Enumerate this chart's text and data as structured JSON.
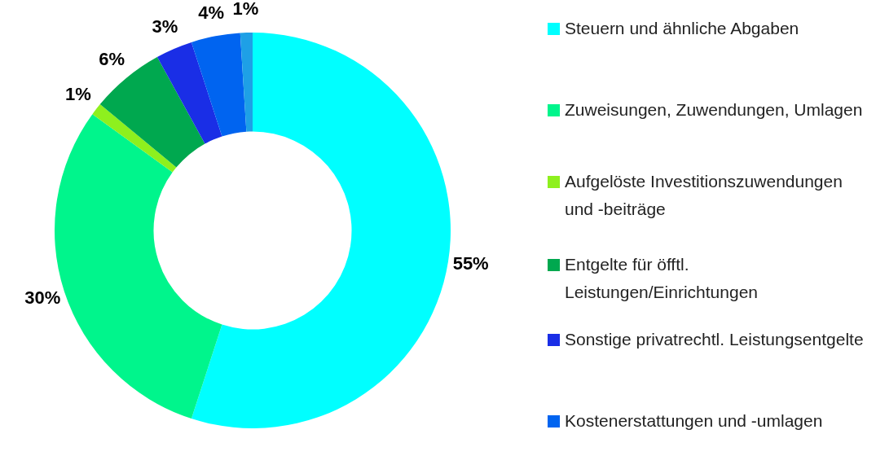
{
  "chart_data": {
    "type": "donut",
    "categories": [
      "Steuern und ähnliche Abgaben",
      "Zuweisungen, Zuwendungen, Umlagen",
      "Aufgelöste Investitionszuwendungen und -beiträge",
      "Entgelte für öfftl. Leistungen/Einrichtungen",
      "Sonstige privatrechtl. Leistungsentgelte",
      "Kostenerstattungen und -umlagen",
      null
    ],
    "values": [
      55,
      30,
      1,
      6,
      3,
      4,
      1
    ],
    "colors": [
      "#00ffff",
      "#00f58c",
      "#8ef01e",
      "#00a84f",
      "#1a2ee6",
      "#0064f0",
      "#1ea0e6"
    ],
    "value_labels": [
      "55%",
      "30%",
      "1%",
      "6%",
      "3%",
      "4%",
      "1%"
    ],
    "legend": "right"
  }
}
